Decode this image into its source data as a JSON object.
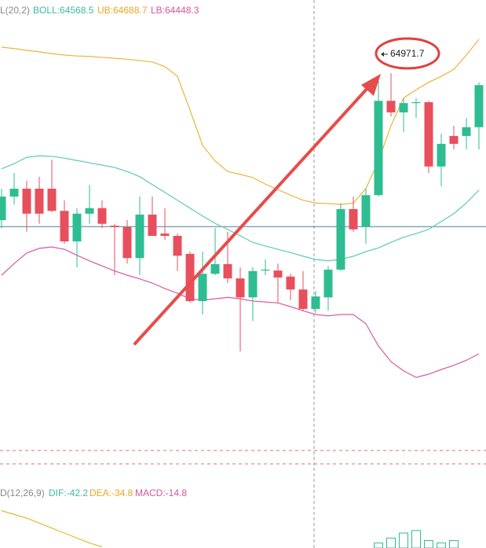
{
  "chart_data": {
    "type": "candlestick",
    "indicator_legend": [
      "L(20,2)",
      "BOLL:64568.5",
      "UB:64688.7",
      "LB:64448.3"
    ],
    "macd_legend": [
      "D(12,26,9)",
      "DIF:-42.2",
      "DEA:-34.8",
      "MACD:-14.8"
    ],
    "ylim": [
      64178,
      65130
    ],
    "up_color": "#2ebd92",
    "down_color": "#e84f5d",
    "open": [
      64654,
      64705,
      64722,
      64722,
      64722,
      64674,
      64608,
      64668,
      64680,
      64642,
      64639,
      64572,
      64666,
      64625,
      64620,
      64581,
      64479,
      64538,
      64559,
      64528,
      64487,
      64545,
      64545,
      64532,
      64504,
      64462,
      64487,
      64547,
      64678,
      64640,
      64708,
      64912,
      64887,
      64907,
      64909,
      64770,
      64836,
      64836,
      64855
    ],
    "high": [
      64722,
      64756,
      64739,
      64748,
      64785,
      64697,
      64680,
      64730,
      64697,
      64646,
      64654,
      64705,
      64705,
      64680,
      64625,
      64586,
      64586,
      64637,
      64629,
      64552,
      64552,
      64569,
      64560,
      64538,
      64544,
      64501,
      64555,
      64691,
      64705,
      64722,
      64960,
      64971.7,
      64918,
      64918,
      64912,
      64841,
      64858,
      64875,
      64952
    ],
    "low": [
      64637,
      64688,
      64629,
      64646,
      64671,
      64603,
      64552,
      64646,
      64637,
      64535,
      64560,
      64535,
      64620,
      64611,
      64544,
      64475,
      64450,
      64535,
      64518,
      64370,
      64436,
      64535,
      64475,
      64481,
      64458,
      64453,
      64458,
      64544,
      64629,
      64603,
      64705,
      64878,
      64844,
      64875,
      64756,
      64727,
      64807,
      64807,
      64807
    ],
    "close": [
      64705,
      64722,
      64668,
      64668,
      64674,
      64608,
      64668,
      64680,
      64646,
      64639,
      64572,
      64666,
      64620,
      64620,
      64577,
      64479,
      64538,
      64559,
      64528,
      64487,
      64544,
      64547,
      64530,
      64504,
      64462,
      64489,
      64547,
      64678,
      64634,
      64708,
      64912,
      64887,
      64907,
      64909,
      64770,
      64819,
      64819,
      64855,
      64946
    ],
    "bands": [
      {
        "name": "UB",
        "color": "#eab53a",
        "values": [
          65028,
          65025,
          65021,
          65018,
          65014,
          65011,
          65009,
          65008,
          65006,
          65004,
          65002,
          64999,
          64996,
          64986,
          64965,
          64892,
          64816,
          64782,
          64759,
          64753,
          64746,
          64732,
          64720,
          64708,
          64697,
          64691,
          64690,
          64688,
          64691,
          64722,
          64782,
          64858,
          64918,
          64936,
          64952,
          64965,
          64980,
          65011,
          65045
        ]
      },
      {
        "name": "BOLL",
        "color": "#5ccab4",
        "values": [
          64765,
          64776,
          64790,
          64793,
          64792,
          64788,
          64783,
          64778,
          64773,
          64768,
          64759,
          64748,
          64731,
          64714,
          64697,
          64680,
          64663,
          64647,
          64634,
          64620,
          64606,
          64598,
          64591,
          64584,
          64576,
          64569,
          64566,
          64569,
          64576,
          64586,
          64594,
          64606,
          64617,
          64625,
          64634,
          64651,
          64668,
          64691,
          64719
        ]
      },
      {
        "name": "LB",
        "color": "#d95aa0",
        "values": [
          64535,
          64560,
          64583,
          64593,
          64596,
          64591,
          64578,
          64566,
          64555,
          64544,
          64535,
          64527,
          64518,
          64506,
          64496,
          64484,
          64481,
          64484,
          64487,
          64484,
          64479,
          64477,
          64475,
          64467,
          64458,
          64450,
          64447,
          64450,
          64450,
          64430,
          64382,
          64348,
          64328,
          64314,
          64321,
          64331,
          64340,
          64351,
          64365
        ]
      }
    ],
    "last_price_line": 64640,
    "price_line_color": "#4d7fa3",
    "macd": {
      "ylim": [
        -48,
        -30
      ],
      "hist_color": "#2ebd92",
      "hist": [
        null,
        null,
        null,
        null,
        null,
        null,
        null,
        null,
        null,
        null,
        null,
        null,
        null,
        null,
        null,
        null,
        null,
        null,
        null,
        null,
        null,
        null,
        null,
        null,
        null,
        null,
        null,
        null,
        null,
        null,
        -46,
        -44,
        -42,
        -41,
        -45,
        -46,
        -45,
        null,
        null
      ],
      "dea_color": "#eab53a",
      "dea": [
        -33,
        -34.5,
        -36,
        -38,
        -40,
        -42,
        -44,
        -46,
        -47.5,
        null,
        null,
        null,
        null,
        null,
        null,
        null,
        null,
        null,
        null,
        null,
        null,
        null,
        null,
        null,
        null,
        null,
        null,
        null,
        null,
        null,
        null,
        null,
        null,
        null,
        null,
        null,
        null,
        null,
        null
      ]
    }
  }
}
